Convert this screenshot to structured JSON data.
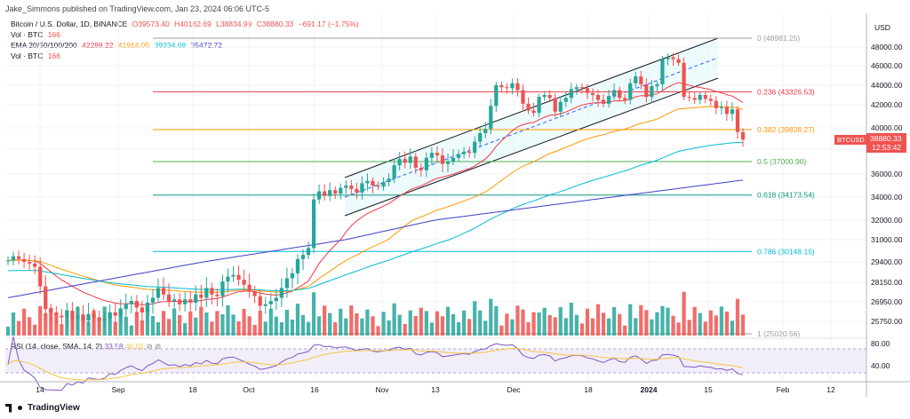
{
  "publisher": "Jake_Simmons published on TradingView.com, Jan 23, 2024 06:06 UTC-5",
  "brand": "TradingView",
  "legend": {
    "title": "Bitcoin / U.S. Dollar, 1D, BINANCE",
    "open": "O39573.40",
    "high": "H40182.69",
    "low": "L38834.99",
    "close": "C38880.33",
    "change": "−691.17 (−1.75%)",
    "vol_label": "Vol · BTC",
    "vol_value": "166",
    "ema_label": "EMA 20/50/100/200",
    "ema20": "42288.22",
    "ema50": "41914.05",
    "ema100": "39334.68",
    "ema200": "35472.72",
    "vol2_label": "Vol · BTC",
    "vol2_value": "166",
    "rsi_label": "RSI (14, close, SMA, 14, 2)",
    "rsi_value": "33.58",
    "rsi_sma": "46.01"
  },
  "colors": {
    "up": "#26a69a",
    "down": "#ef5350",
    "ema20": "#f23645",
    "ema50": "#ff9800",
    "ema100": "#00bcd4",
    "ema200": "#3f3fc8",
    "rsi": "#7e57c2",
    "rsi_ma": "#f5c542"
  },
  "chart_data": {
    "type": "candlestick",
    "symbol": "BTCUSD",
    "currency": "USD",
    "last_price": "38880.33",
    "countdown": "12:53:42",
    "x_ticks": [
      "14",
      "Sep",
      "18",
      "Oct",
      "16",
      "Nov",
      "13",
      "Dec",
      "18",
      "2024",
      "15",
      "Feb",
      "12"
    ],
    "y_ticks": [
      "48000.00",
      "46000.00",
      "44000.00",
      "42000.00",
      "40000.00",
      "38000.00",
      "36000.00",
      "34000.00",
      "32000.00",
      "31000.00",
      "29400.00",
      "28150.00",
      "26950.00",
      "25750.00"
    ],
    "rsi_ticks": [
      "80.00",
      "40.00"
    ],
    "fibonacci": [
      {
        "label": "0 (48981.25)",
        "price": 48981.25,
        "color": "#9e9e9e"
      },
      {
        "label": "0.236 (43326.53)",
        "price": 43326.53,
        "color": "#f23645"
      },
      {
        "label": "0.382 (39828.27)",
        "price": 39828.27,
        "color": "#ff9800"
      },
      {
        "label": "0.5 (37000.90)",
        "price": 37000.9,
        "color": "#4caf50"
      },
      {
        "label": "0.618 (34173.54)",
        "price": 34173.54,
        "color": "#089981"
      },
      {
        "label": "0.786 (30148.15)",
        "price": 30148.15,
        "color": "#00bcd4"
      },
      {
        "label": "1 (25020.56)",
        "price": 25020.56,
        "color": "#9e9e9e"
      }
    ],
    "close_trend": [
      29500,
      29800,
      29600,
      29400,
      29300,
      29100,
      27900,
      26500,
      26300,
      26100,
      26000,
      26400,
      25900,
      26100,
      25800,
      26200,
      26000,
      25800,
      25900,
      26300,
      26100,
      26500,
      26800,
      27000,
      26600,
      26300,
      26900,
      27200,
      27800,
      27400,
      27000,
      27100,
      26800,
      27100,
      26900,
      27400,
      27200,
      27800,
      27400,
      27300,
      28200,
      28500,
      28600,
      28300,
      28000,
      27600,
      27300,
      26700,
      26800,
      27000,
      27200,
      27800,
      28400,
      28700,
      29600,
      29900,
      30400,
      33800,
      34500,
      34100,
      34600,
      34300,
      34800,
      35000,
      34700,
      34400,
      35200,
      35400,
      35000,
      34900,
      35300,
      35600,
      36700,
      37200,
      36900,
      37400,
      36500,
      36300,
      37300,
      37700,
      37500,
      36800,
      37000,
      37300,
      37600,
      37800,
      37700,
      38700,
      39500,
      39900,
      41900,
      44000,
      43800,
      43700,
      44200,
      43500,
      42100,
      41500,
      41300,
      42800,
      43000,
      42700,
      41400,
      42300,
      42700,
      43600,
      43800,
      43700,
      43200,
      43000,
      42500,
      42100,
      42900,
      43500,
      42700,
      42500,
      44200,
      44900,
      44100,
      42800,
      43900,
      44100,
      46700,
      46900,
      46700,
      46300,
      42800,
      42700,
      42500,
      43000,
      42600,
      42400,
      41700,
      41800,
      41200,
      41600,
      39600,
      38900
    ]
  }
}
